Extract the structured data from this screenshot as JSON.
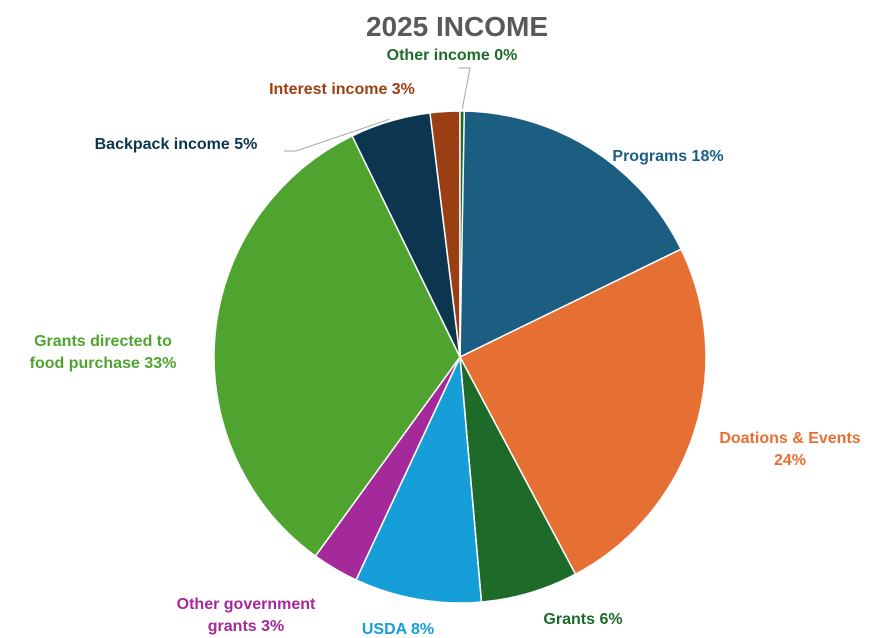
{
  "chart_data": {
    "type": "pie",
    "title": "2025 INCOME",
    "slices": [
      {
        "label": "Programs 18%",
        "value": 18,
        "color": "#1b5e82"
      },
      {
        "label": "Doations & Events 24%",
        "value": 24,
        "color": "#e66f33"
      },
      {
        "label": "Grants 6%",
        "value": 6,
        "color": "#1e6b29"
      },
      {
        "label": "USDA 8%",
        "value": 8,
        "color": "#169ed8"
      },
      {
        "label": "Other government grants 3%",
        "value": 3,
        "color": "#a4299a"
      },
      {
        "label": "Grants directed to food purchase 33%",
        "value": 33,
        "color": "#4ea42f"
      },
      {
        "label": "Backpack income 5%",
        "value": 5,
        "color": "#0c3650"
      },
      {
        "label": "Interest income 3%",
        "value": 3,
        "color": "#9a3f13"
      },
      {
        "label": "Other income 0%",
        "value": 0,
        "color": "#1e6b29"
      }
    ],
    "label_lines": [
      [
        "Programs 18%"
      ],
      [
        "Doations & Events",
        "24%"
      ],
      [
        "Grants 6%"
      ],
      [
        "USDA 8%"
      ],
      [
        "Other government",
        "grants 3%"
      ],
      [
        "Grants directed to",
        "food purchase 33%"
      ],
      [
        "Backpack income 5%"
      ],
      [
        "Interest income 3%"
      ],
      [
        "Other income 0%"
      ]
    ],
    "label_colors": [
      "#1b5e82",
      "#e66f33",
      "#1e6b29",
      "#169ed8",
      "#a4299a",
      "#4ea42f",
      "#0c3650",
      "#9a3f13",
      "#1e6b29"
    ],
    "title_color": "#595959",
    "legend": "none"
  }
}
